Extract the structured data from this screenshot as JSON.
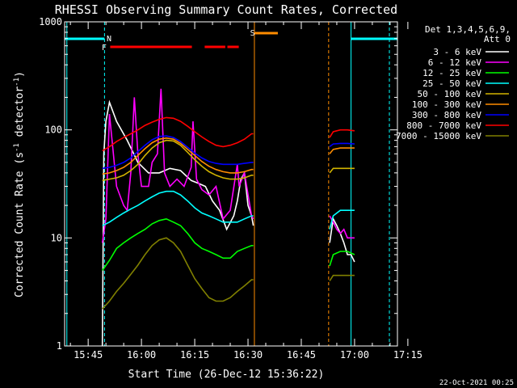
{
  "chart_data": {
    "type": "line",
    "title": "RHESSI Observing Summary Count Rates, Corrected",
    "xlabel": "Start Time (26-Dec-12 15:36:22)",
    "ylabel": "Corrected Count Rate (s⁻¹ detector⁻¹)",
    "ylabel_main": "Corrected Count Rate (s",
    "ylabel_sup1": "-1",
    "ylabel_mid": " detector",
    "ylabel_sup2": "-1",
    "ylabel_end": ")",
    "y_scale": "log",
    "ylim": [
      1,
      1000
    ],
    "xlim_minutes": [
      -51.63,
      42.07
    ],
    "x_ticks": [
      {
        "label": "15:45",
        "t": -45
      },
      {
        "label": "16:00",
        "t": -30
      },
      {
        "label": "16:15",
        "t": -15
      },
      {
        "label": "16:30",
        "t": 0
      },
      {
        "label": "16:45",
        "t": 15
      },
      {
        "label": "17:00",
        "t": 30
      },
      {
        "label": "17:15",
        "t": 45
      }
    ],
    "y_ticks": [
      {
        "label": "1",
        "v": 1
      },
      {
        "label": "10",
        "v": 10
      },
      {
        "label": "100",
        "v": 100
      },
      {
        "label": "1000",
        "v": 1000
      }
    ],
    "legend": {
      "header1": "Det 1,3,4,5,6,9,",
      "header2": "Att 0",
      "placement": "right"
    },
    "footer_date": "22-Oct-2021 00:25",
    "annotations": {
      "N": {
        "label": "N",
        "color": "#00ffff"
      },
      "F": {
        "label": "F",
        "color": "#ff0000"
      },
      "S": {
        "label": "S",
        "color": "#ff8c00"
      }
    },
    "series": [
      {
        "name": "3 - 6 keV",
        "color": "#ffffff",
        "points": [
          [
            -41,
            1
          ],
          [
            -40.6,
            60
          ],
          [
            -40,
            120
          ],
          [
            -39,
            180
          ],
          [
            -37,
            120
          ],
          [
            -34,
            80
          ],
          [
            -31,
            50
          ],
          [
            -28,
            40
          ],
          [
            -25,
            40
          ],
          [
            -22,
            44
          ],
          [
            -19,
            42
          ],
          [
            -16,
            34
          ],
          [
            -14,
            32
          ],
          [
            -12,
            30
          ],
          [
            -10,
            22
          ],
          [
            -8,
            18
          ],
          [
            -6,
            12
          ],
          [
            -4,
            16
          ],
          [
            -3,
            22
          ],
          [
            -2,
            35
          ],
          [
            -1,
            40
          ],
          [
            0,
            20
          ],
          [
            1,
            16
          ],
          [
            1.5,
            13
          ]
        ],
        "points2": [
          [
            23,
            9
          ],
          [
            24,
            15
          ],
          [
            25,
            13
          ],
          [
            26,
            11
          ],
          [
            27,
            9
          ],
          [
            28,
            7
          ],
          [
            29,
            7
          ],
          [
            30,
            6
          ]
        ]
      },
      {
        "name": "6 - 12 keV",
        "color": "#ff00ff",
        "points": [
          [
            -41,
            9
          ],
          [
            -40,
            15
          ],
          [
            -39,
            140
          ],
          [
            -38.2,
            75
          ],
          [
            -37,
            30
          ],
          [
            -35,
            20
          ],
          [
            -34,
            18
          ],
          [
            -33,
            40
          ],
          [
            -32,
            200
          ],
          [
            -31,
            60
          ],
          [
            -30,
            30
          ],
          [
            -28,
            30
          ],
          [
            -27,
            50
          ],
          [
            -25.5,
            60
          ],
          [
            -24.5,
            240
          ],
          [
            -23.5,
            40
          ],
          [
            -22,
            30
          ],
          [
            -20,
            35
          ],
          [
            -18,
            30
          ],
          [
            -16,
            45
          ],
          [
            -15.5,
            120
          ],
          [
            -14.5,
            35
          ],
          [
            -13,
            28
          ],
          [
            -11,
            25
          ],
          [
            -9,
            30
          ],
          [
            -7,
            15
          ],
          [
            -5,
            18
          ],
          [
            -3,
            48
          ],
          [
            -2.5,
            30
          ],
          [
            -1,
            40
          ],
          [
            1,
            16
          ],
          [
            1.5,
            15
          ]
        ],
        "points2": [
          [
            23,
            16
          ],
          [
            24,
            14
          ],
          [
            25,
            12
          ],
          [
            26,
            11
          ],
          [
            27,
            12
          ],
          [
            28,
            10
          ],
          [
            30,
            10
          ]
        ]
      },
      {
        "name": "12 - 25 keV",
        "color": "#00ff00",
        "points": [
          [
            -41,
            5
          ],
          [
            -39,
            6.2
          ],
          [
            -37,
            8
          ],
          [
            -35,
            9
          ],
          [
            -33,
            10
          ],
          [
            -31,
            11
          ],
          [
            -29,
            12
          ],
          [
            -27,
            13.5
          ],
          [
            -25,
            14.5
          ],
          [
            -23,
            15
          ],
          [
            -21,
            14
          ],
          [
            -19,
            13
          ],
          [
            -17,
            11
          ],
          [
            -15,
            9
          ],
          [
            -13,
            8
          ],
          [
            -11,
            7.5
          ],
          [
            -9,
            7
          ],
          [
            -7,
            6.5
          ],
          [
            -5,
            6.5
          ],
          [
            -3,
            7.5
          ],
          [
            -1,
            8
          ],
          [
            1,
            8.5
          ],
          [
            1.5,
            8.5
          ]
        ],
        "points2": [
          [
            23,
            5.5
          ],
          [
            24,
            7
          ],
          [
            26,
            7.5
          ],
          [
            28,
            7.5
          ],
          [
            30,
            7
          ]
        ]
      },
      {
        "name": "25 - 50 keV",
        "color": "#00ffff",
        "points": [
          [
            -41,
            13
          ],
          [
            -39,
            14
          ],
          [
            -37,
            15.5
          ],
          [
            -35,
            17
          ],
          [
            -33,
            18.5
          ],
          [
            -31,
            20
          ],
          [
            -29,
            22
          ],
          [
            -27,
            24
          ],
          [
            -25,
            26
          ],
          [
            -23,
            27
          ],
          [
            -21,
            27
          ],
          [
            -19,
            25
          ],
          [
            -17,
            22
          ],
          [
            -15,
            19
          ],
          [
            -13,
            17
          ],
          [
            -11,
            16
          ],
          [
            -9,
            15
          ],
          [
            -7,
            14
          ],
          [
            -5,
            14
          ],
          [
            -3,
            14
          ],
          [
            -1,
            15
          ],
          [
            1,
            16
          ],
          [
            1.5,
            16
          ]
        ],
        "points2": [
          [
            23,
            12
          ],
          [
            24,
            16
          ],
          [
            26,
            18
          ],
          [
            28,
            18
          ],
          [
            30,
            18
          ]
        ]
      },
      {
        "name": "50 - 100 keV",
        "color": "#d2b400",
        "points": [
          [
            -41,
            34
          ],
          [
            -39,
            35
          ],
          [
            -37,
            36
          ],
          [
            -35,
            38
          ],
          [
            -33,
            42
          ],
          [
            -31,
            48
          ],
          [
            -29,
            58
          ],
          [
            -27,
            68
          ],
          [
            -25,
            76
          ],
          [
            -23,
            80
          ],
          [
            -21,
            79
          ],
          [
            -19,
            72
          ],
          [
            -17,
            62
          ],
          [
            -15,
            53
          ],
          [
            -13,
            46
          ],
          [
            -11,
            41
          ],
          [
            -9,
            38
          ],
          [
            -7,
            36
          ],
          [
            -5,
            35
          ],
          [
            -3,
            35
          ],
          [
            -1,
            36
          ],
          [
            1,
            38
          ],
          [
            1.5,
            38
          ]
        ],
        "points2": [
          [
            23,
            40
          ],
          [
            24,
            44
          ],
          [
            26,
            44
          ],
          [
            28,
            44
          ],
          [
            30,
            44
          ]
        ]
      },
      {
        "name": "100 - 300 keV",
        "color": "#ff8c00",
        "points": [
          [
            -41,
            39
          ],
          [
            -39,
            40
          ],
          [
            -37,
            42
          ],
          [
            -35,
            45
          ],
          [
            -33,
            50
          ],
          [
            -31,
            58
          ],
          [
            -29,
            67
          ],
          [
            -27,
            76
          ],
          [
            -25,
            82
          ],
          [
            -23,
            84
          ],
          [
            -21,
            82
          ],
          [
            -19,
            75
          ],
          [
            -17,
            66
          ],
          [
            -15,
            58
          ],
          [
            -13,
            51
          ],
          [
            -11,
            46
          ],
          [
            -9,
            43
          ],
          [
            -7,
            41
          ],
          [
            -5,
            40
          ],
          [
            -3,
            40
          ],
          [
            -1,
            41
          ],
          [
            1,
            43
          ],
          [
            1.5,
            43
          ]
        ],
        "points2": [
          [
            23,
            60
          ],
          [
            24,
            66
          ],
          [
            26,
            68
          ],
          [
            28,
            68
          ],
          [
            30,
            68
          ]
        ]
      },
      {
        "name": "300 - 800 keV",
        "color": "#0000ff",
        "points": [
          [
            -41,
            44
          ],
          [
            -39,
            45
          ],
          [
            -37,
            47
          ],
          [
            -35,
            50
          ],
          [
            -33,
            55
          ],
          [
            -31,
            63
          ],
          [
            -29,
            72
          ],
          [
            -27,
            81
          ],
          [
            -25,
            87
          ],
          [
            -23,
            88
          ],
          [
            -21,
            85
          ],
          [
            -19,
            78
          ],
          [
            -17,
            69
          ],
          [
            -15,
            61
          ],
          [
            -13,
            55
          ],
          [
            -11,
            51
          ],
          [
            -9,
            49
          ],
          [
            -7,
            48
          ],
          [
            -5,
            48
          ],
          [
            -3,
            48
          ],
          [
            -1,
            49
          ],
          [
            1,
            50
          ],
          [
            1.5,
            50
          ]
        ],
        "points2": [
          [
            23,
            70
          ],
          [
            24,
            74
          ],
          [
            26,
            75
          ],
          [
            28,
            75
          ],
          [
            30,
            74
          ]
        ]
      },
      {
        "name": "800 - 7000 keV",
        "color": "#ff0000",
        "points": [
          [
            -41,
            64
          ],
          [
            -39,
            70
          ],
          [
            -37,
            78
          ],
          [
            -35,
            85
          ],
          [
            -33,
            92
          ],
          [
            -31,
            100
          ],
          [
            -29,
            110
          ],
          [
            -27,
            118
          ],
          [
            -25,
            125
          ],
          [
            -23,
            130
          ],
          [
            -21,
            128
          ],
          [
            -19,
            120
          ],
          [
            -17,
            108
          ],
          [
            -15,
            96
          ],
          [
            -13,
            86
          ],
          [
            -11,
            78
          ],
          [
            -9,
            72
          ],
          [
            -7,
            70
          ],
          [
            -5,
            72
          ],
          [
            -3,
            76
          ],
          [
            -1,
            82
          ],
          [
            1,
            92
          ],
          [
            1.5,
            92
          ]
        ],
        "points2": [
          [
            23,
            85
          ],
          [
            24,
            96
          ],
          [
            26,
            100
          ],
          [
            28,
            100
          ],
          [
            30,
            98
          ]
        ]
      },
      {
        "name": "7000 - 15000 keV",
        "color": "#808000",
        "points": [
          [
            -41,
            2.2
          ],
          [
            -39,
            2.6
          ],
          [
            -37,
            3.2
          ],
          [
            -35,
            3.8
          ],
          [
            -33,
            4.6
          ],
          [
            -31,
            5.6
          ],
          [
            -29,
            7
          ],
          [
            -27,
            8.5
          ],
          [
            -25,
            9.6
          ],
          [
            -23,
            10
          ],
          [
            -21,
            9
          ],
          [
            -19,
            7.5
          ],
          [
            -17,
            5.6
          ],
          [
            -15,
            4.2
          ],
          [
            -13,
            3.4
          ],
          [
            -11,
            2.8
          ],
          [
            -9,
            2.6
          ],
          [
            -7,
            2.6
          ],
          [
            -5,
            2.8
          ],
          [
            -3,
            3.2
          ],
          [
            -1,
            3.6
          ],
          [
            1,
            4.1
          ],
          [
            1.5,
            4.1
          ]
        ],
        "points2": [
          [
            23,
            4
          ],
          [
            24,
            4.5
          ],
          [
            26,
            4.5
          ],
          [
            28,
            4.5
          ],
          [
            30,
            4.5
          ]
        ]
      }
    ]
  }
}
